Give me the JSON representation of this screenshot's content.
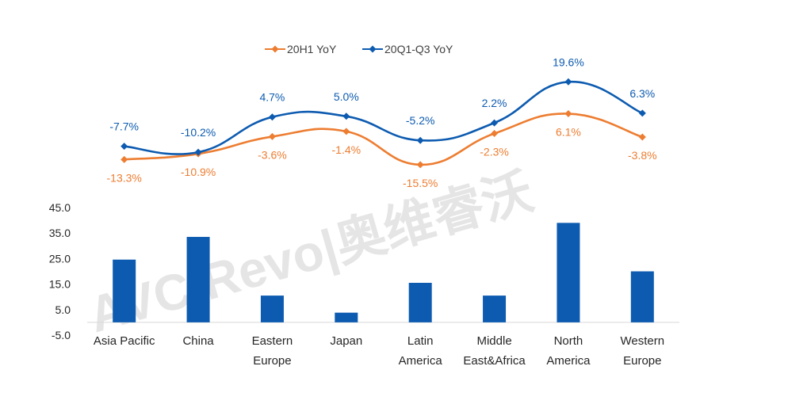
{
  "chart_data": {
    "type": "bar+line",
    "categories": [
      [
        "Asia Pacific"
      ],
      [
        "China"
      ],
      [
        "Eastern",
        "Europe"
      ],
      [
        "Japan"
      ],
      [
        "Latin",
        "America"
      ],
      [
        "Middle",
        "East&Africa"
      ],
      [
        "North",
        "America"
      ],
      [
        "Western",
        "Europe"
      ]
    ],
    "bar_series": {
      "values": [
        24.6,
        33.5,
        10.5,
        3.8,
        15.5,
        10.5,
        39.0,
        20.0
      ],
      "color": "#0d5bb0",
      "y_ticks": [
        "45.0",
        "35.0",
        "25.0",
        "15.0",
        "5.0",
        "-5.0"
      ],
      "ylim": [
        -5,
        45
      ]
    },
    "line_series": [
      {
        "name": "20H1 YoY",
        "color": "#ed7d31",
        "values": [
          -13.3,
          -10.9,
          -3.6,
          -1.4,
          -15.5,
          -2.3,
          6.1,
          -3.8
        ],
        "labels": [
          "-13.3%",
          "-10.9%",
          "-3.6%",
          "-1.4%",
          "-15.5%",
          "-2.3%",
          "6.1%",
          "-3.8%"
        ]
      },
      {
        "name": "20Q1-Q3 YoY",
        "color": "#0d5bb0",
        "values": [
          -7.7,
          -10.2,
          4.7,
          5.0,
          -5.2,
          2.2,
          19.6,
          6.3
        ],
        "labels": [
          "-7.7%",
          "-10.2%",
          "4.7%",
          "5.0%",
          "-5.2%",
          "2.2%",
          "19.6%",
          "6.3%"
        ]
      }
    ],
    "legend_position": "top",
    "grid": false
  },
  "watermark": {
    "text": "AVC Revo|奥维睿沃"
  }
}
